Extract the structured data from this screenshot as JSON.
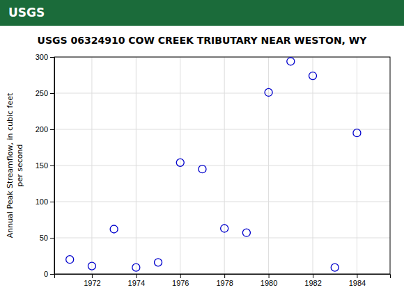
{
  "chart_data": {
    "type": "scatter",
    "title": "USGS 06324910 COW CREEK TRIBUTARY NEAR WESTON, WY",
    "annotations": [
      "USGS"
    ],
    "ylabel": "Annual Peak Streamflow, in cubic feet\nper second",
    "x": [
      1971,
      1972,
      1973,
      1974,
      1975,
      1976,
      1977,
      1978,
      1979,
      1980,
      1981,
      1982,
      1983,
      1984
    ],
    "values": [
      20,
      11,
      62,
      9,
      16,
      154,
      145,
      63,
      57,
      251,
      294,
      274,
      9,
      195
    ],
    "color": "#0000CC",
    "marker": "open-circle",
    "xlim": [
      1970.3,
      1985.5
    ],
    "ylim": [
      0,
      300
    ],
    "xticks": [
      1972,
      1974,
      1976,
      1978,
      1980,
      1982,
      1984
    ],
    "yticks": [
      0,
      50,
      100,
      150,
      200,
      250,
      300
    ],
    "grid": true
  }
}
